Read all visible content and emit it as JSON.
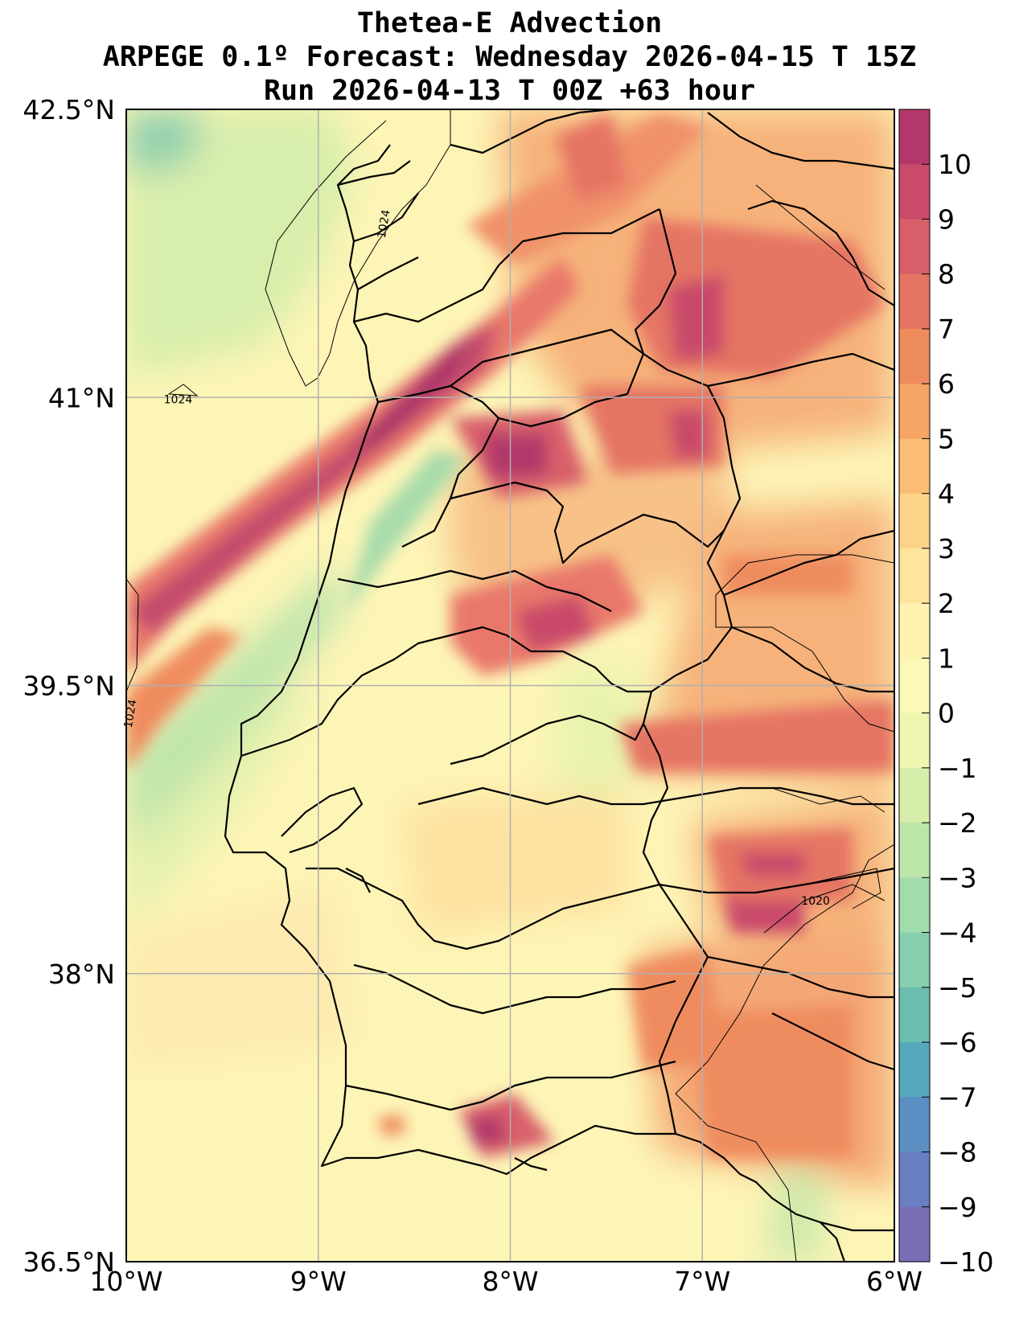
{
  "title": {
    "line1": "Thetea-E Advection",
    "line2": "ARPEGE 0.1º Forecast: Wednesday 2026-04-15 T 15Z",
    "line3": "Run 2026-04-13 T 00Z +63 hour"
  },
  "map": {
    "lon_ticks": [
      {
        "value": -10,
        "label": "10°W"
      },
      {
        "value": -9,
        "label": "9°W"
      },
      {
        "value": -8,
        "label": "8°W"
      },
      {
        "value": -7,
        "label": "7°W"
      },
      {
        "value": -6,
        "label": "6°W"
      }
    ],
    "lat_ticks": [
      {
        "value": 42.5,
        "label": "42.5°N"
      },
      {
        "value": 41,
        "label": "41°N"
      },
      {
        "value": 39.5,
        "label": "39.5°N"
      },
      {
        "value": 38,
        "label": "38°N"
      },
      {
        "value": 36.5,
        "label": "36.5°N"
      }
    ],
    "lon_range": [
      -10,
      -6
    ],
    "lat_range": [
      36.5,
      42.5
    ],
    "grid": true,
    "isobar_labels": [
      {
        "text": "1024",
        "lon": -8.64,
        "lat": 41.9
      },
      {
        "text": "1024",
        "lon": -9.73,
        "lat": 40.97
      },
      {
        "text": "1024",
        "lon": -9.96,
        "lat": 39.35
      },
      {
        "text": "1020",
        "lon": -6.41,
        "lat": 38.36
      }
    ]
  },
  "colorbar": {
    "values": [
      10,
      9,
      8,
      7,
      6,
      5,
      4,
      3,
      2,
      1,
      0,
      -1,
      -2,
      -3,
      -4,
      -5,
      -6,
      -7,
      -8,
      -9,
      -10
    ],
    "labels": [
      "10",
      "9",
      "8",
      "7",
      "6",
      "5",
      "4",
      "3",
      "2",
      "1",
      "0",
      "−1",
      "−2",
      "−3",
      "−4",
      "−5",
      "−6",
      "−7",
      "−8",
      "−9",
      "−10"
    ],
    "colors": [
      "#b3376a",
      "#c94a6a",
      "#d85f6a",
      "#e57563",
      "#ef8c5e",
      "#f6a565",
      "#fbbd74",
      "#fdd38a",
      "#fee59c",
      "#fef4b0",
      "#fbf8b8",
      "#eef6b0",
      "#d6eeaa",
      "#bde6ab",
      "#a2dbac",
      "#86cfae",
      "#6bbdb0",
      "#58a8bb",
      "#5b8fc4",
      "#6a7ec4",
      "#7a6fb7"
    ]
  },
  "features": {
    "advection_high_positive": "#b3376a",
    "advection_neutral": "#fbf8b8",
    "advection_negative": "#7a6fb7"
  }
}
